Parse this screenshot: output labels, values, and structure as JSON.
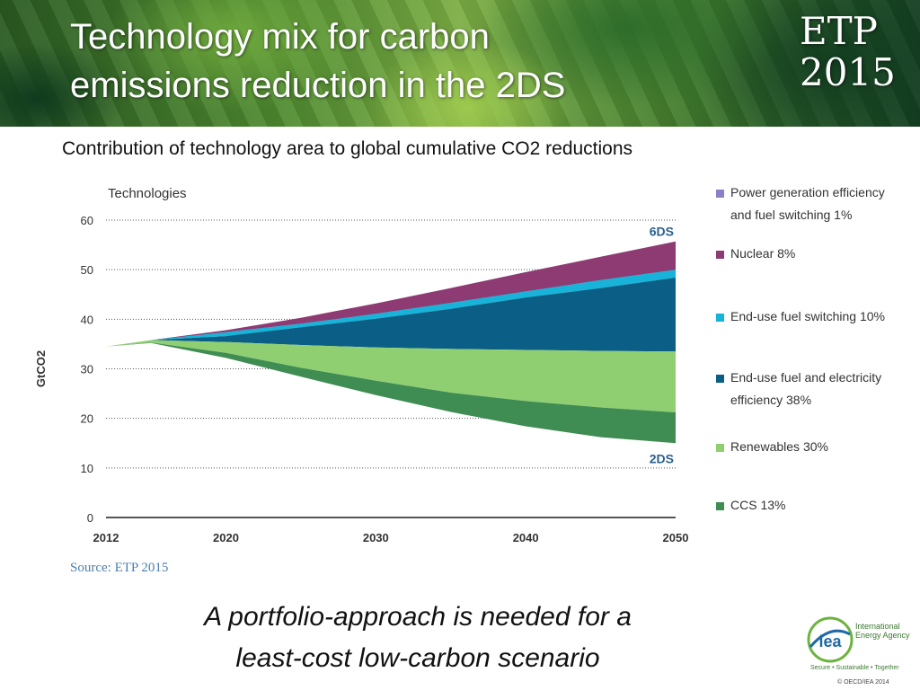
{
  "slide": {
    "title": "Technology mix for carbon\nemissions reduction in the 2DS",
    "badge": {
      "line1": "ETP",
      "line2": "2015"
    },
    "subtitle": "Contribution of technology area to global cumulative CO2 reductions",
    "source": "Source: ETP 2015",
    "conclusion": "A portfolio-approach is needed for a\nleast-cost low-carbon scenario",
    "logo": {
      "mark_text": "iea",
      "name": "International\nEnergy Agency",
      "tagline": "Secure • Sustainable • Together",
      "copyright": "© OECD/IEA 2014"
    }
  },
  "chart_data": {
    "type": "area",
    "title": "Technologies",
    "xlabel": "",
    "ylabel": "GtCO2",
    "xlim": [
      2012,
      2050
    ],
    "ylim": [
      0,
      60
    ],
    "x_ticks": [
      2012,
      2020,
      2030,
      2040,
      2050
    ],
    "y_ticks": [
      0,
      10,
      20,
      30,
      40,
      50,
      60
    ],
    "x": [
      2012,
      2015,
      2020,
      2025,
      2030,
      2035,
      2040,
      2045,
      2050
    ],
    "scenarios": {
      "upper": "6DS",
      "lower": "2DS"
    },
    "series": [
      {
        "name": "Power generation efficiency and fuel switching 1%",
        "color": "#8b7fc7",
        "lower": [
          34.5,
          35.8,
          37.3,
          39.0,
          41.0,
          43.2,
          45.5,
          47.8,
          49.8
        ],
        "upper": [
          34.5,
          35.8,
          37.4,
          39.1,
          41.1,
          43.3,
          45.6,
          47.9,
          50.0
        ]
      },
      {
        "name": "Nuclear 8%",
        "color": "#8e3a73",
        "lower": [
          34.5,
          35.8,
          37.4,
          39.1,
          41.1,
          43.3,
          45.6,
          47.9,
          50.0
        ],
        "upper": [
          34.5,
          35.8,
          37.8,
          40.3,
          43.2,
          46.3,
          49.5,
          52.6,
          55.7
        ]
      },
      {
        "name": "End-use fuel switching 10%",
        "color": "#17b3d8",
        "lower": [
          34.5,
          35.8,
          36.6,
          38.4,
          40.1,
          42.1,
          44.4,
          46.3,
          48.4
        ],
        "upper": [
          34.5,
          35.8,
          37.4,
          39.1,
          41.1,
          43.3,
          45.6,
          47.9,
          50.0
        ]
      },
      {
        "name": "End-use fuel and electricity efficiency 38%",
        "color": "#0b5f87",
        "lower": [
          34.5,
          35.8,
          35.4,
          34.8,
          34.3,
          34.0,
          33.8,
          33.6,
          33.5
        ],
        "upper": [
          34.5,
          35.8,
          36.6,
          38.4,
          40.1,
          42.1,
          44.4,
          46.3,
          48.4
        ]
      },
      {
        "name": "Renewables 30%",
        "color": "#8fcf72",
        "lower": [
          34.5,
          35.3,
          33.2,
          30.2,
          27.6,
          25.2,
          23.5,
          22.2,
          21.2
        ],
        "upper": [
          34.5,
          35.8,
          35.4,
          34.8,
          34.3,
          34.0,
          33.8,
          33.6,
          33.5
        ]
      },
      {
        "name": "CCS 13%",
        "color": "#3f8d52",
        "lower": [
          34.5,
          35.2,
          32.2,
          28.4,
          24.7,
          21.3,
          18.4,
          16.2,
          15.0
        ],
        "upper": [
          34.5,
          35.3,
          33.2,
          30.2,
          27.6,
          25.2,
          23.5,
          22.2,
          21.2
        ]
      }
    ],
    "legend_position": "right"
  }
}
